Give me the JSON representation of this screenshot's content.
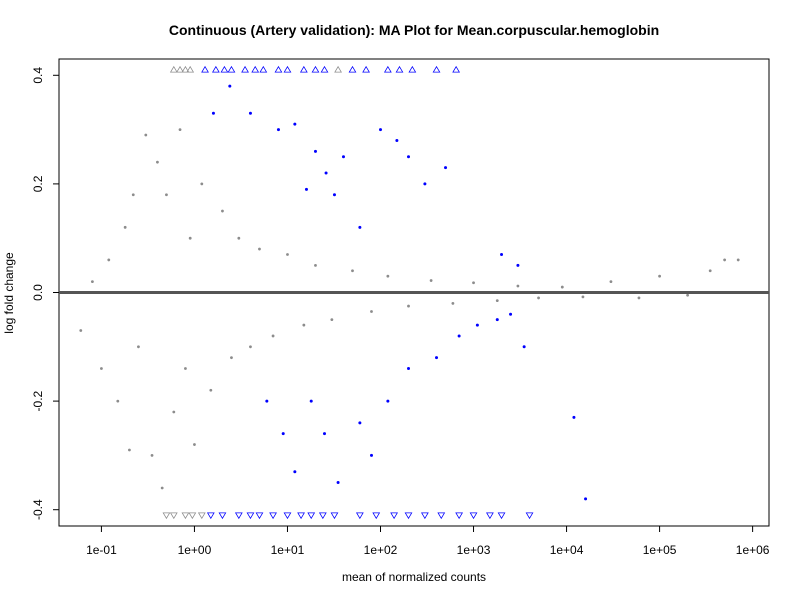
{
  "chart_data": {
    "type": "scatter",
    "title": "Continuous (Artery validation): MA Plot for Mean.corpuscular.hemoglobin",
    "xlabel": "mean of normalized counts",
    "ylabel": "log fold change",
    "x_scale": "log10",
    "xlim": [
      0.035,
      1500000
    ],
    "ylim": [
      -0.43,
      0.43
    ],
    "x_ticks": [
      {
        "value": 0.1,
        "label": "1e-01"
      },
      {
        "value": 1,
        "label": "1e+00"
      },
      {
        "value": 10,
        "label": "1e+01"
      },
      {
        "value": 100,
        "label": "1e+02"
      },
      {
        "value": 1000,
        "label": "1e+03"
      },
      {
        "value": 10000,
        "label": "1e+04"
      },
      {
        "value": 100000,
        "label": "1e+05"
      },
      {
        "value": 1000000,
        "label": "1e+06"
      }
    ],
    "y_ticks": [
      {
        "value": -0.4,
        "label": "-0.4"
      },
      {
        "value": -0.2,
        "label": "-0.2"
      },
      {
        "value": 0.0,
        "label": "0.0"
      },
      {
        "value": 0.2,
        "label": "0.2"
      },
      {
        "value": 0.4,
        "label": "0.4"
      }
    ],
    "reference_line_y": 0,
    "colors": {
      "not_significant": "#8c8c8c",
      "significant": "#0000ff",
      "reference_line": "#555555"
    },
    "series": [
      {
        "group": "not_significant",
        "color": "#8c8c8c",
        "shape": "dot",
        "points": [
          [
            0.06,
            -0.07
          ],
          [
            0.08,
            0.02
          ],
          [
            0.1,
            -0.14
          ],
          [
            0.12,
            0.06
          ],
          [
            0.15,
            -0.2
          ],
          [
            0.18,
            0.12
          ],
          [
            0.2,
            -0.29
          ],
          [
            0.22,
            0.18
          ],
          [
            0.25,
            -0.1
          ],
          [
            0.3,
            0.29
          ],
          [
            0.35,
            -0.3
          ],
          [
            0.4,
            0.24
          ],
          [
            0.45,
            -0.36
          ],
          [
            0.5,
            0.18
          ],
          [
            0.6,
            -0.22
          ],
          [
            0.7,
            0.3
          ],
          [
            0.8,
            -0.14
          ],
          [
            0.9,
            0.1
          ],
          [
            1.0,
            -0.28
          ],
          [
            1.2,
            0.2
          ],
          [
            1.5,
            -0.18
          ],
          [
            2.0,
            0.15
          ],
          [
            2.5,
            -0.12
          ],
          [
            3.0,
            0.1
          ],
          [
            4.0,
            -0.1
          ],
          [
            5.0,
            0.08
          ],
          [
            7.0,
            -0.08
          ],
          [
            10.0,
            0.07
          ],
          [
            15.0,
            -0.06
          ],
          [
            20.0,
            0.05
          ],
          [
            30.0,
            -0.05
          ],
          [
            50.0,
            0.04
          ],
          [
            80.0,
            -0.035
          ],
          [
            120.0,
            0.03
          ],
          [
            200.0,
            -0.025
          ],
          [
            350.0,
            0.022
          ],
          [
            600.0,
            -0.02
          ],
          [
            1000.0,
            0.018
          ],
          [
            1800.0,
            -0.015
          ],
          [
            3000.0,
            0.012
          ],
          [
            5000.0,
            -0.01
          ],
          [
            9000.0,
            0.01
          ],
          [
            15000.0,
            -0.008
          ],
          [
            30000.0,
            0.02
          ],
          [
            60000.0,
            -0.01
          ],
          [
            100000.0,
            0.03
          ],
          [
            200000.0,
            -0.005
          ],
          [
            350000.0,
            0.04
          ],
          [
            500000.0,
            0.06
          ],
          [
            700000.0,
            0.06
          ]
        ]
      },
      {
        "group": "significant",
        "color": "#0000ff",
        "shape": "dot",
        "points": [
          [
            1.6,
            0.33
          ],
          [
            2.4,
            0.38
          ],
          [
            4.0,
            0.33
          ],
          [
            8.0,
            0.3
          ],
          [
            12.0,
            0.31
          ],
          [
            16.0,
            0.19
          ],
          [
            20.0,
            0.26
          ],
          [
            26.0,
            0.22
          ],
          [
            32.0,
            0.18
          ],
          [
            40.0,
            0.25
          ],
          [
            60.0,
            0.12
          ],
          [
            100.0,
            0.3
          ],
          [
            150.0,
            0.28
          ],
          [
            200.0,
            0.25
          ],
          [
            300.0,
            0.2
          ],
          [
            500.0,
            0.23
          ],
          [
            2000.0,
            0.07
          ],
          [
            3000.0,
            0.05
          ],
          [
            6.0,
            -0.2
          ],
          [
            9.0,
            -0.26
          ],
          [
            12.0,
            -0.33
          ],
          [
            18.0,
            -0.2
          ],
          [
            25.0,
            -0.26
          ],
          [
            35.0,
            -0.35
          ],
          [
            60.0,
            -0.24
          ],
          [
            80.0,
            -0.3
          ],
          [
            120.0,
            -0.2
          ],
          [
            200.0,
            -0.14
          ],
          [
            400.0,
            -0.12
          ],
          [
            700.0,
            -0.08
          ],
          [
            1100.0,
            -0.06
          ],
          [
            1800.0,
            -0.05
          ],
          [
            2500.0,
            -0.04
          ],
          [
            3500.0,
            -0.1
          ],
          [
            12000.0,
            -0.23
          ],
          [
            16000.0,
            -0.38
          ]
        ]
      },
      {
        "group": "not_significant_out_of_range",
        "color": "#8c8c8c",
        "shape": "triangle-up",
        "points": [
          [
            0.6,
            0.41
          ],
          [
            0.7,
            0.41
          ],
          [
            0.8,
            0.41
          ],
          [
            0.9,
            0.41
          ],
          [
            35.0,
            0.41
          ]
        ]
      },
      {
        "group": "significant_out_of_range",
        "color": "#0000ff",
        "shape": "triangle-up",
        "points": [
          [
            1.3,
            0.41
          ],
          [
            1.7,
            0.41
          ],
          [
            2.1,
            0.41
          ],
          [
            2.5,
            0.41
          ],
          [
            3.5,
            0.41
          ],
          [
            4.5,
            0.41
          ],
          [
            5.5,
            0.41
          ],
          [
            8.0,
            0.41
          ],
          [
            10.0,
            0.41
          ],
          [
            15.0,
            0.41
          ],
          [
            20.0,
            0.41
          ],
          [
            25.0,
            0.41
          ],
          [
            50.0,
            0.41
          ],
          [
            70.0,
            0.41
          ],
          [
            120.0,
            0.41
          ],
          [
            160.0,
            0.41
          ],
          [
            220.0,
            0.41
          ],
          [
            400.0,
            0.41
          ],
          [
            650.0,
            0.41
          ]
        ]
      },
      {
        "group": "not_significant_out_of_range",
        "color": "#8c8c8c",
        "shape": "triangle-down",
        "points": [
          [
            0.5,
            -0.41
          ],
          [
            0.6,
            -0.41
          ],
          [
            0.8,
            -0.41
          ],
          [
            0.95,
            -0.41
          ],
          [
            1.2,
            -0.41
          ]
        ]
      },
      {
        "group": "significant_out_of_range",
        "color": "#0000ff",
        "shape": "triangle-down",
        "points": [
          [
            1.5,
            -0.41
          ],
          [
            2.0,
            -0.41
          ],
          [
            3.0,
            -0.41
          ],
          [
            4.0,
            -0.41
          ],
          [
            5.0,
            -0.41
          ],
          [
            7.0,
            -0.41
          ],
          [
            10.0,
            -0.41
          ],
          [
            14.0,
            -0.41
          ],
          [
            18.0,
            -0.41
          ],
          [
            24.0,
            -0.41
          ],
          [
            32.0,
            -0.41
          ],
          [
            60.0,
            -0.41
          ],
          [
            90.0,
            -0.41
          ],
          [
            140.0,
            -0.41
          ],
          [
            200.0,
            -0.41
          ],
          [
            300.0,
            -0.41
          ],
          [
            450.0,
            -0.41
          ],
          [
            700.0,
            -0.41
          ],
          [
            1000.0,
            -0.41
          ],
          [
            1500.0,
            -0.41
          ],
          [
            2000.0,
            -0.41
          ],
          [
            4000.0,
            -0.41
          ]
        ]
      }
    ]
  }
}
